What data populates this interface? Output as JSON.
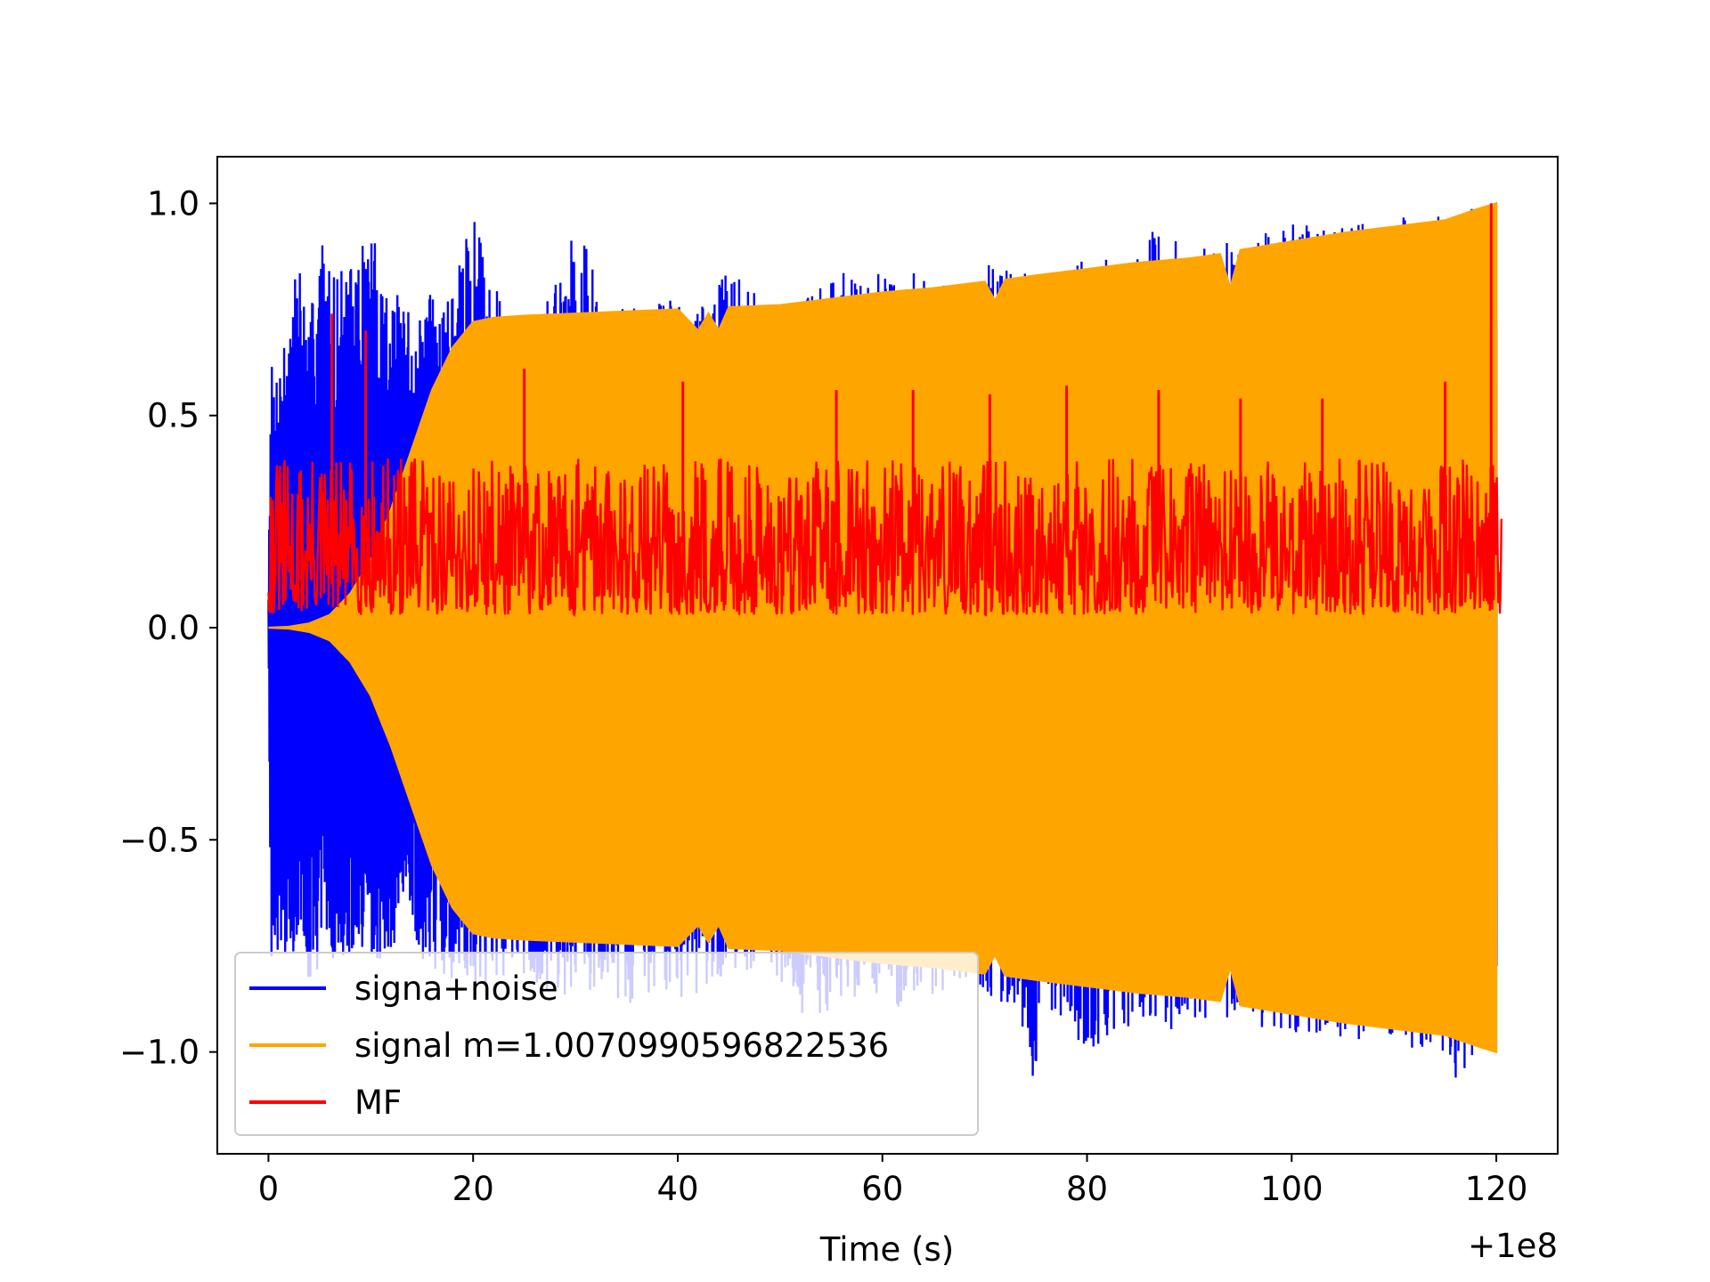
{
  "chart_data": {
    "type": "line",
    "title": "",
    "xlabel": "Time (s)",
    "ylabel": "",
    "x_offset_label": "+1e8",
    "xlim": [
      -5,
      126
    ],
    "ylim": [
      -1.24,
      1.11
    ],
    "x_ticks": [
      0,
      20,
      40,
      60,
      80,
      100,
      120
    ],
    "x_tick_labels": [
      "0",
      "20",
      "40",
      "60",
      "80",
      "100",
      "120"
    ],
    "y_ticks": [
      1.0,
      0.5,
      0.0,
      -0.5,
      -1.0
    ],
    "y_tick_labels": [
      "1.0",
      "0.5",
      "0.0",
      "−0.5",
      "−1.0"
    ],
    "grid": false,
    "legend_position": "lower-left",
    "series": [
      {
        "name": "signa+noise",
        "color": "#0000ff",
        "x": [
          0,
          0.2,
          0.5,
          1,
          2,
          3,
          4,
          5,
          6,
          8,
          10,
          12,
          14,
          15,
          16,
          18,
          20,
          23,
          25,
          28,
          30,
          33,
          35,
          38,
          40,
          41,
          43,
          45,
          48,
          50,
          53,
          55,
          58,
          60,
          62,
          65,
          68,
          70,
          71,
          73,
          75,
          75.5,
          78,
          80,
          83,
          85,
          87,
          88,
          90,
          93,
          95,
          98,
          100,
          103,
          105,
          108,
          110,
          113,
          115,
          116,
          118,
          119,
          120
        ],
        "upper": [
          0.1,
          0.64,
          0.6,
          0.64,
          0.75,
          0.9,
          0.7,
          0.97,
          0.85,
          0.85,
          0.95,
          0.8,
          0.75,
          0.72,
          0.82,
          0.8,
          0.98,
          0.74,
          0.68,
          0.82,
          1.0,
          0.73,
          0.76,
          0.78,
          0.78,
          0.76,
          0.77,
          0.86,
          0.78,
          0.75,
          0.8,
          0.85,
          0.82,
          0.87,
          0.86,
          0.8,
          0.82,
          0.86,
          0.85,
          0.84,
          0.86,
          0.84,
          0.85,
          0.87,
          0.88,
          0.88,
          0.96,
          0.92,
          0.9,
          0.92,
          0.88,
          0.94,
          0.95,
          0.96,
          0.97,
          0.95,
          0.98,
          0.97,
          0.99,
          0.99,
          0.99,
          1.0,
          0.99
        ],
        "lower": [
          -0.1,
          -0.78,
          -0.78,
          -0.76,
          -0.77,
          -0.79,
          -0.83,
          -0.8,
          -0.78,
          -0.8,
          -0.82,
          -0.76,
          -0.74,
          -0.78,
          -0.8,
          -0.84,
          -0.86,
          -0.83,
          -0.85,
          -0.86,
          -0.87,
          -0.84,
          -0.9,
          -0.85,
          -0.88,
          -0.88,
          -0.85,
          -0.86,
          -0.85,
          -0.88,
          -0.92,
          -0.9,
          -0.86,
          -0.88,
          -0.9,
          -0.88,
          -0.84,
          -0.88,
          -0.88,
          -0.89,
          -1.13,
          -0.9,
          -0.94,
          -1.03,
          -0.96,
          -0.92,
          -0.94,
          -0.98,
          -0.92,
          -0.93,
          -0.95,
          -0.94,
          -0.96,
          -0.96,
          -0.97,
          -0.97,
          -0.99,
          -0.99,
          -1.0,
          -1.09,
          -1.0,
          -1.0,
          -1.0
        ]
      },
      {
        "name": "signal m=1.0070990596822536",
        "color": "#ffa500",
        "x": [
          0,
          2,
          4,
          6,
          8,
          10,
          12,
          14,
          16,
          18,
          20,
          22,
          25,
          30,
          35,
          40,
          42,
          43,
          44,
          45,
          50,
          55,
          60,
          65,
          70,
          71,
          72,
          75,
          80,
          85,
          90,
          93,
          94,
          95,
          100,
          105,
          110,
          115,
          118,
          120
        ],
        "upper": [
          0.0,
          0.002,
          0.01,
          0.03,
          0.08,
          0.16,
          0.28,
          0.42,
          0.56,
          0.66,
          0.72,
          0.73,
          0.735,
          0.74,
          0.745,
          0.75,
          0.7,
          0.74,
          0.7,
          0.755,
          0.76,
          0.775,
          0.79,
          0.8,
          0.815,
          0.77,
          0.82,
          0.83,
          0.845,
          0.86,
          0.87,
          0.88,
          0.8,
          0.89,
          0.91,
          0.93,
          0.945,
          0.96,
          0.985,
          1.0
        ],
        "lower": [
          0.0,
          -0.002,
          -0.01,
          -0.03,
          -0.08,
          -0.16,
          -0.28,
          -0.42,
          -0.56,
          -0.66,
          -0.72,
          -0.73,
          -0.735,
          -0.74,
          -0.745,
          -0.75,
          -0.7,
          -0.74,
          -0.7,
          -0.755,
          -0.76,
          -0.775,
          -0.79,
          -0.8,
          -0.815,
          -0.77,
          -0.82,
          -0.83,
          -0.845,
          -0.86,
          -0.87,
          -0.88,
          -0.8,
          -0.89,
          -0.91,
          -0.93,
          -0.945,
          -0.96,
          -0.985,
          -1.0
        ]
      },
      {
        "name": "MF",
        "color": "#ff0000",
        "x_range": [
          0,
          120.5
        ],
        "baseline": 0.2,
        "typical_min": 0.03,
        "typical_max": 0.4,
        "peaks_x": [
          6.2,
          9.5,
          25,
          40.5,
          55.5,
          63,
          70.5,
          78,
          87,
          95,
          103,
          115,
          119.5
        ],
        "peaks_y": [
          0.74,
          0.7,
          0.61,
          0.58,
          0.56,
          0.56,
          0.55,
          0.57,
          0.56,
          0.54,
          0.54,
          0.58,
          1.0
        ]
      }
    ]
  }
}
